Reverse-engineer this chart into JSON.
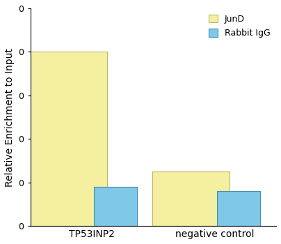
{
  "categories": [
    "TP53INP2",
    "negative control"
  ],
  "jund_values": [
    0.08,
    0.025
  ],
  "igg_values": [
    0.018,
    0.016
  ],
  "jund_color": "#f5f0a0",
  "jund_edge_color": "#b8b860",
  "igg_color": "#80c8e8",
  "igg_edge_color": "#4090b0",
  "ylabel": "Relative Enrichment to Input",
  "ylim": [
    0,
    0.1
  ],
  "ytick_values": [
    0.0,
    0.02,
    0.04,
    0.06,
    0.08,
    0.1
  ],
  "ytick_labels": [
    "0",
    "0",
    "0",
    "0",
    "0",
    "0"
  ],
  "legend_labels": [
    "JunD",
    "Rabbit IgG"
  ],
  "bar_width": 0.35,
  "group_positions": [
    0.25,
    0.75
  ],
  "xlim": [
    0.0,
    1.0
  ],
  "background_color": "#ffffff",
  "axis_fontsize": 10,
  "tick_fontsize": 9,
  "legend_fontsize": 9,
  "ylabel_fontsize": 10
}
